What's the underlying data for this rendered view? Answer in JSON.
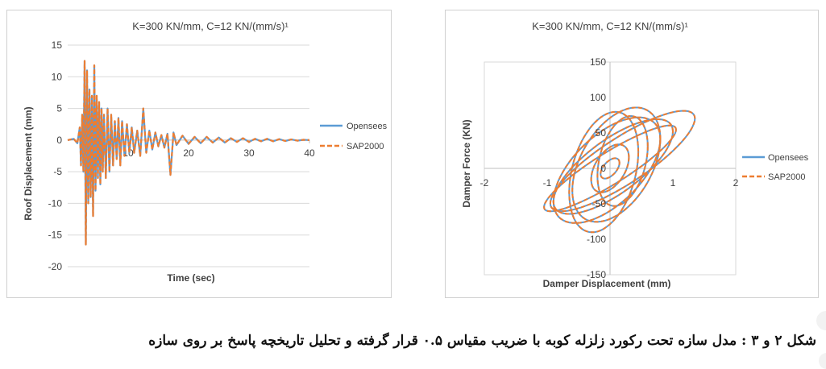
{
  "caption": "شکل ۲ و ۳ : مدل سازه تحت رکورد زلزله کوبه با ضریب مقیاس ۰.۵ قرار گرفته و تحلیل تاریخچه پاسخ بر روی سازه",
  "colors": {
    "opensees": "#5b9bd5",
    "sap2000": "#ed7d31",
    "grid": "#d9d9d9",
    "axis": "#bfbfbf",
    "text": "#404040"
  },
  "chart_data": [
    {
      "type": "line",
      "title": "K=300 KN/mm, C=12 KN/(mm/s)¹",
      "xlabel": "Time (sec)",
      "ylabel": "Roof Displacement (mm)",
      "xlim": [
        0,
        40
      ],
      "ylim": [
        -20,
        15
      ],
      "xticks": [
        "10",
        "20",
        "30",
        "40"
      ],
      "yticks": [
        "15",
        "10",
        "5",
        "0",
        "-5",
        "-10",
        "-15",
        "-20"
      ],
      "legend": "right",
      "gridlines": "horizontal",
      "series": [
        {
          "name": "Opensees",
          "style": "solid",
          "x": [
            0,
            1.0,
            1.6,
            2.0,
            2.2,
            2.4,
            2.6,
            2.8,
            3.0,
            3.2,
            3.4,
            3.6,
            3.8,
            4.0,
            4.2,
            4.4,
            4.6,
            4.8,
            5.0,
            5.2,
            5.4,
            5.6,
            5.8,
            6.0,
            6.3,
            6.6,
            6.9,
            7.2,
            7.5,
            7.8,
            8.1,
            8.4,
            8.7,
            9.0,
            9.4,
            9.8,
            10.2,
            10.6,
            11.0,
            11.5,
            12.0,
            12.5,
            13.0,
            13.5,
            14.0,
            14.5,
            15.0,
            15.5,
            16.0,
            16.5,
            17.0,
            17.5,
            18.0,
            19.0,
            20.0,
            21.0,
            22.0,
            23.0,
            24.0,
            25.0,
            26.0,
            27.0,
            28.0,
            29.0,
            30.0,
            31.0,
            32.0,
            33.0,
            34.0,
            35.0,
            36.0,
            37.0,
            38.0,
            39.0,
            40.0
          ],
          "y": [
            0,
            0.2,
            -0.5,
            2.0,
            -4.0,
            4.0,
            -5.0,
            12.5,
            -16.5,
            11.0,
            -10.0,
            8.0,
            -9.0,
            7.0,
            -12.0,
            11.8,
            -8.0,
            7.0,
            -6.0,
            6.0,
            -7.0,
            5.0,
            -5.0,
            4.0,
            -6.0,
            5.0,
            -5.0,
            4.0,
            -4.0,
            3.0,
            -3.0,
            3.5,
            -4.0,
            3.0,
            -2.5,
            2.5,
            -2.0,
            2.0,
            -2.0,
            1.5,
            -2.5,
            5.0,
            -2.0,
            1.5,
            -1.5,
            1.2,
            -1.0,
            0.8,
            -1.2,
            1.0,
            -5.5,
            1.2,
            -0.8,
            0.7,
            -0.6,
            0.5,
            -0.5,
            0.5,
            -0.4,
            0.4,
            -0.4,
            0.3,
            -0.3,
            0.3,
            -0.3,
            0.2,
            -0.2,
            0.2,
            -0.2,
            0.15,
            -0.15,
            0.1,
            -0.1,
            0.05,
            0
          ]
        },
        {
          "name": "SAP2000",
          "style": "dashed",
          "x": [
            0,
            1.0,
            1.6,
            2.0,
            2.2,
            2.4,
            2.6,
            2.8,
            3.0,
            3.2,
            3.4,
            3.6,
            3.8,
            4.0,
            4.2,
            4.4,
            4.6,
            4.8,
            5.0,
            5.2,
            5.4,
            5.6,
            5.8,
            6.0,
            6.3,
            6.6,
            6.9,
            7.2,
            7.5,
            7.8,
            8.1,
            8.4,
            8.7,
            9.0,
            9.4,
            9.8,
            10.2,
            10.6,
            11.0,
            11.5,
            12.0,
            12.5,
            13.0,
            13.5,
            14.0,
            14.5,
            15.0,
            15.5,
            16.0,
            16.5,
            17.0,
            17.5,
            18.0,
            19.0,
            20.0,
            21.0,
            22.0,
            23.0,
            24.0,
            25.0,
            26.0,
            27.0,
            28.0,
            29.0,
            30.0,
            31.0,
            32.0,
            33.0,
            34.0,
            35.0,
            36.0,
            37.0,
            38.0,
            39.0,
            40.0
          ],
          "y": [
            0,
            0.2,
            -0.5,
            2.0,
            -4.0,
            4.0,
            -5.0,
            12.5,
            -16.5,
            11.0,
            -10.0,
            8.0,
            -9.0,
            7.0,
            -12.0,
            11.8,
            -8.0,
            7.0,
            -6.0,
            6.0,
            -7.0,
            5.0,
            -5.0,
            4.0,
            -6.0,
            5.0,
            -5.0,
            4.0,
            -4.0,
            3.0,
            -3.0,
            3.5,
            -4.0,
            3.0,
            -2.5,
            2.5,
            -2.0,
            2.0,
            -2.0,
            1.5,
            -2.5,
            5.0,
            -2.0,
            1.5,
            -1.5,
            1.2,
            -1.0,
            0.8,
            -1.2,
            1.0,
            -5.5,
            1.2,
            -0.8,
            0.7,
            -0.6,
            0.5,
            -0.5,
            0.5,
            -0.4,
            0.4,
            -0.4,
            0.3,
            -0.3,
            0.3,
            -0.3,
            0.2,
            -0.2,
            0.2,
            -0.2,
            0.15,
            -0.15,
            0.1,
            -0.1,
            0.05,
            0
          ]
        }
      ]
    },
    {
      "type": "scatter",
      "title": "K=300 KN/mm, C=12 KN/(mm/s)¹",
      "xlabel": "Damper Displacement (mm)",
      "ylabel": "Damper Force (KN)",
      "xlim": [
        -2,
        2
      ],
      "ylim": [
        -150,
        150
      ],
      "xticks": [
        "-2",
        "-1",
        "0",
        "1",
        "2"
      ],
      "yticks": [
        "150",
        "100",
        "50",
        "0",
        "-50",
        "-100",
        "-150"
      ],
      "legend": "right",
      "gridlines": "none",
      "loops": [
        {
          "a": 1.05,
          "b": 26,
          "shift": 0.0
        },
        {
          "a": 0.95,
          "b": 45,
          "shift": 0.05
        },
        {
          "a": 0.85,
          "b": 60,
          "shift": -0.05
        },
        {
          "a": 0.7,
          "b": 72,
          "shift": 0.1
        },
        {
          "a": 0.55,
          "b": 80,
          "shift": -0.1
        },
        {
          "a": 0.4,
          "b": 60,
          "shift": 0.2
        },
        {
          "a": 0.3,
          "b": 30,
          "shift": 0.0
        },
        {
          "a": 1.15,
          "b": 38,
          "shift": 0.2
        },
        {
          "a": 0.15,
          "b": 12,
          "shift": 0.0
        }
      ],
      "series": [
        {
          "name": "Opensees",
          "style": "solid"
        },
        {
          "name": "SAP2000",
          "style": "dashed"
        }
      ]
    }
  ]
}
